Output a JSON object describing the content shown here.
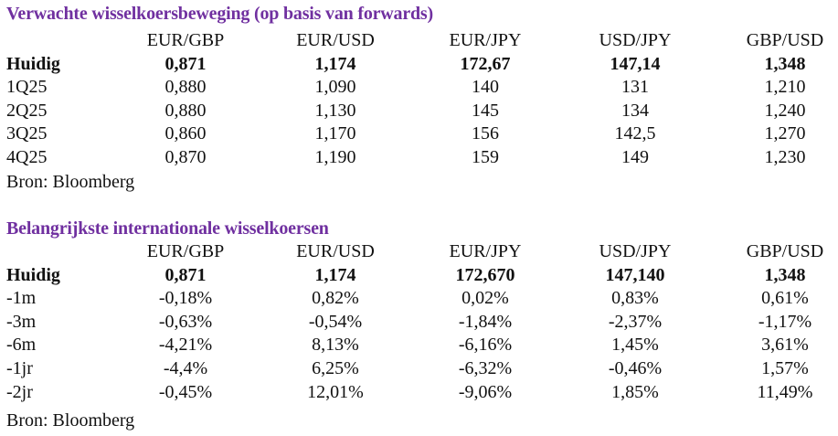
{
  "colors": {
    "title": "#7030a0"
  },
  "forwards": {
    "title": "Verwachte wisselkoersbeweging (op basis van forwards)",
    "headers": [
      "",
      "EUR/GBP",
      "EUR/USD",
      "EUR/JPY",
      "USD/JPY",
      "GBP/USD"
    ],
    "rows": [
      [
        "Huidig",
        "0,871",
        "1,174",
        "172,67",
        "147,14",
        "1,348"
      ],
      [
        "1Q25",
        "0,880",
        "1,090",
        "140",
        "131",
        "1,210"
      ],
      [
        "2Q25",
        "0,880",
        "1,130",
        "145",
        "134",
        "1,240"
      ],
      [
        "3Q25",
        "0,860",
        "1,170",
        "156",
        "142,5",
        "1,270"
      ],
      [
        "4Q25",
        "0,870",
        "1,190",
        "159",
        "149",
        "1,230"
      ]
    ],
    "source": "Bron: Bloomberg"
  },
  "rates": {
    "title": "Belangrijkste internationale wisselkoersen",
    "headers": [
      "",
      "EUR/GBP",
      "EUR/USD",
      "EUR/JPY",
      "USD/JPY",
      "GBP/USD"
    ],
    "rows": [
      [
        "Huidig",
        "0,871",
        "1,174",
        "172,670",
        "147,140",
        "1,348"
      ],
      [
        "-1m",
        "-0,18%",
        "0,82%",
        "0,02%",
        "0,83%",
        "0,61%"
      ],
      [
        "-3m",
        "-0,63%",
        "-0,54%",
        "-1,84%",
        "-2,37%",
        "-1,17%"
      ],
      [
        "-6m",
        "-4,21%",
        "8,13%",
        "-6,16%",
        "1,45%",
        "3,61%"
      ],
      [
        "-1jr",
        "-4,4%",
        "6,25%",
        "-6,32%",
        "-0,46%",
        "1,57%"
      ],
      [
        "-2jr",
        "-0,45%",
        "12,01%",
        "-9,06%",
        "1,85%",
        "11,49%"
      ]
    ],
    "source": "Bron: Bloomberg"
  }
}
